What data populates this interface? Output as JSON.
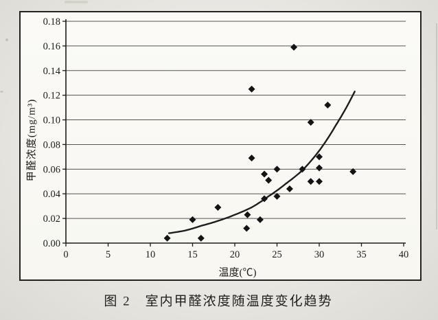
{
  "figure": {
    "caption": "图 2　室内甲醛浓度随温度变化趋势"
  },
  "chart_data": {
    "type": "scatter",
    "title": "",
    "xlabel": "温度(℃)",
    "ylabel": "甲醛浓度(mg/m³)",
    "xlim": [
      0,
      40
    ],
    "ylim": [
      0,
      0.18
    ],
    "x_ticks": [
      "0",
      "5",
      "10",
      "15",
      "20",
      "25",
      "30",
      "35",
      "40"
    ],
    "y_ticks": [
      "0.00",
      "0.02",
      "0.04",
      "0.06",
      "0.08",
      "0.10",
      "0.12",
      "0.14",
      "0.16",
      "0.18"
    ],
    "grid": "horizontal-only",
    "legend": "none",
    "marker": "filled-diamond",
    "points": [
      [
        12,
        0.004
      ],
      [
        15,
        0.019
      ],
      [
        16,
        0.004
      ],
      [
        18,
        0.029
      ],
      [
        21.4,
        0.012
      ],
      [
        21.5,
        0.023
      ],
      [
        22,
        0.069
      ],
      [
        22,
        0.125
      ],
      [
        23,
        0.019
      ],
      [
        23.5,
        0.036
      ],
      [
        23.5,
        0.056
      ],
      [
        24,
        0.051
      ],
      [
        25,
        0.038
      ],
      [
        25,
        0.06
      ],
      [
        26.5,
        0.044
      ],
      [
        27,
        0.159
      ],
      [
        28,
        0.06
      ],
      [
        29,
        0.05
      ],
      [
        29,
        0.098
      ],
      [
        30,
        0.05
      ],
      [
        30,
        0.061
      ],
      [
        30,
        0.07
      ],
      [
        31,
        0.112
      ],
      [
        34,
        0.058
      ]
    ],
    "trend_curve": {
      "shape": "smooth exponential-like rising curve",
      "samples": [
        [
          12.2,
          0.008
        ],
        [
          14,
          0.01
        ],
        [
          16,
          0.014
        ],
        [
          18,
          0.018
        ],
        [
          20,
          0.023
        ],
        [
          22,
          0.029
        ],
        [
          24,
          0.038
        ],
        [
          26,
          0.048
        ],
        [
          28,
          0.059
        ],
        [
          30,
          0.075
        ],
        [
          32,
          0.096
        ],
        [
          34.2,
          0.123
        ]
      ]
    },
    "colors": {
      "marker": "#141414",
      "curve": "#1d1d1d",
      "grid": "#565450",
      "axis": "#1c1a18",
      "text": "#1b1b1a"
    }
  }
}
